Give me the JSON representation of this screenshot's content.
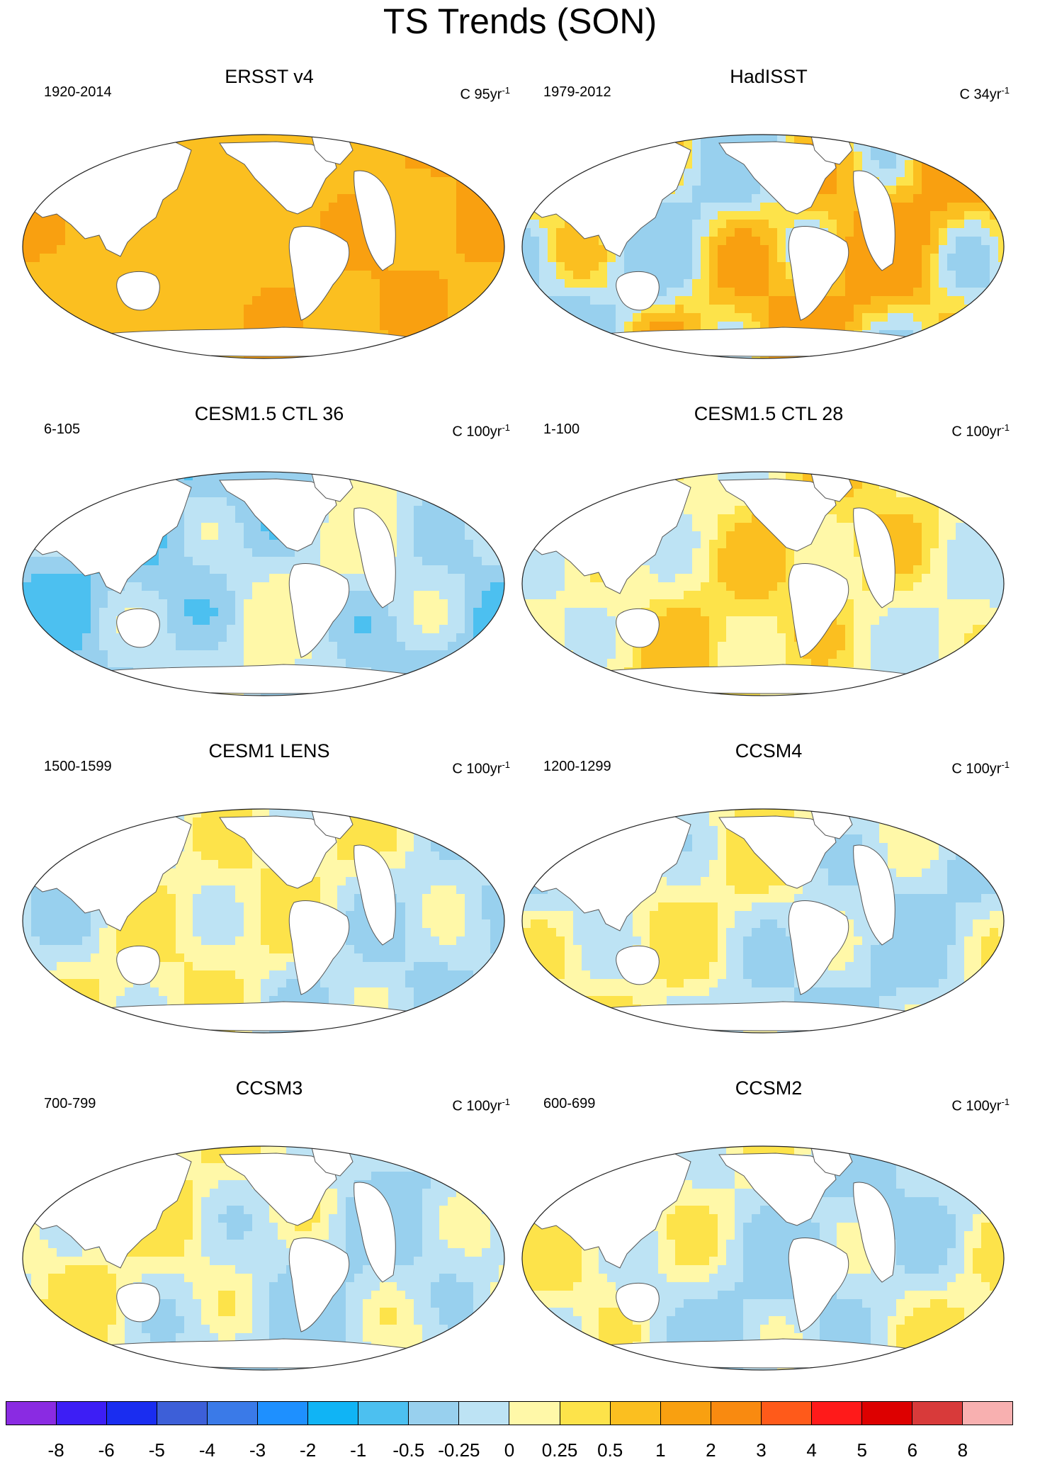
{
  "figure": {
    "title": "TS Trends (SON)"
  },
  "panels": [
    {
      "title": "ERSST v4",
      "period": "1920-2014",
      "units_base": "C 95yr",
      "units_exp": "-1",
      "dominant": "warm_strong"
    },
    {
      "title": "HadISST",
      "period": "1979-2012",
      "units_base": "C 34yr",
      "units_exp": "-1",
      "dominant": "mixed_warm"
    },
    {
      "title": "CESM1.5 CTL 36",
      "period": "6-105",
      "units_base": "C 100yr",
      "units_exp": "-1",
      "dominant": "cool"
    },
    {
      "title": "CESM1.5 CTL 28",
      "period": "1-100",
      "units_base": "C 100yr",
      "units_exp": "-1",
      "dominant": "warm_weak"
    },
    {
      "title": "CESM1 LENS",
      "period": "1500-1599",
      "units_base": "C 100yr",
      "units_exp": "-1",
      "dominant": "mixed"
    },
    {
      "title": "CCSM4",
      "period": "1200-1299",
      "units_base": "C 100yr",
      "units_exp": "-1",
      "dominant": "mixed_cool"
    },
    {
      "title": "CCSM3",
      "period": "700-799",
      "units_base": "C 100yr",
      "units_exp": "-1",
      "dominant": "mixed_cool"
    },
    {
      "title": "CCSM2",
      "period": "600-699",
      "units_base": "C 100yr",
      "units_exp": "-1",
      "dominant": "mixed_cool"
    }
  ],
  "colorbar": {
    "colors": [
      "#8a2be2",
      "#3d1ef5",
      "#1a2df0",
      "#3d5fd8",
      "#3a7ae8",
      "#1e90ff",
      "#10b4f5",
      "#4cc0f0",
      "#98d0ee",
      "#bde3f4",
      "#fff8a8",
      "#fde34a",
      "#fbbf20",
      "#f9a010",
      "#f98a10",
      "#ff5a1a",
      "#ff1a1a",
      "#dd0000",
      "#d83a3a",
      "#f8b0b0"
    ],
    "labels": [
      "-8",
      "-6",
      "-5",
      "-4",
      "-3",
      "-2",
      "-1",
      "-0.5",
      "-0.25",
      "0",
      "0.25",
      "0.5",
      "1",
      "2",
      "3",
      "4",
      "5",
      "6",
      "8"
    ]
  },
  "palette": {
    "warm_strong": "#fbbf20",
    "warm_mid": "#f9a010",
    "warm_weak": "#fff8a8",
    "warm_light": "#fde34a",
    "cool_light": "#bde3f4",
    "cool_mid": "#98d0ee",
    "cool_strong": "#4cc0f0",
    "land": "#ffffff"
  }
}
